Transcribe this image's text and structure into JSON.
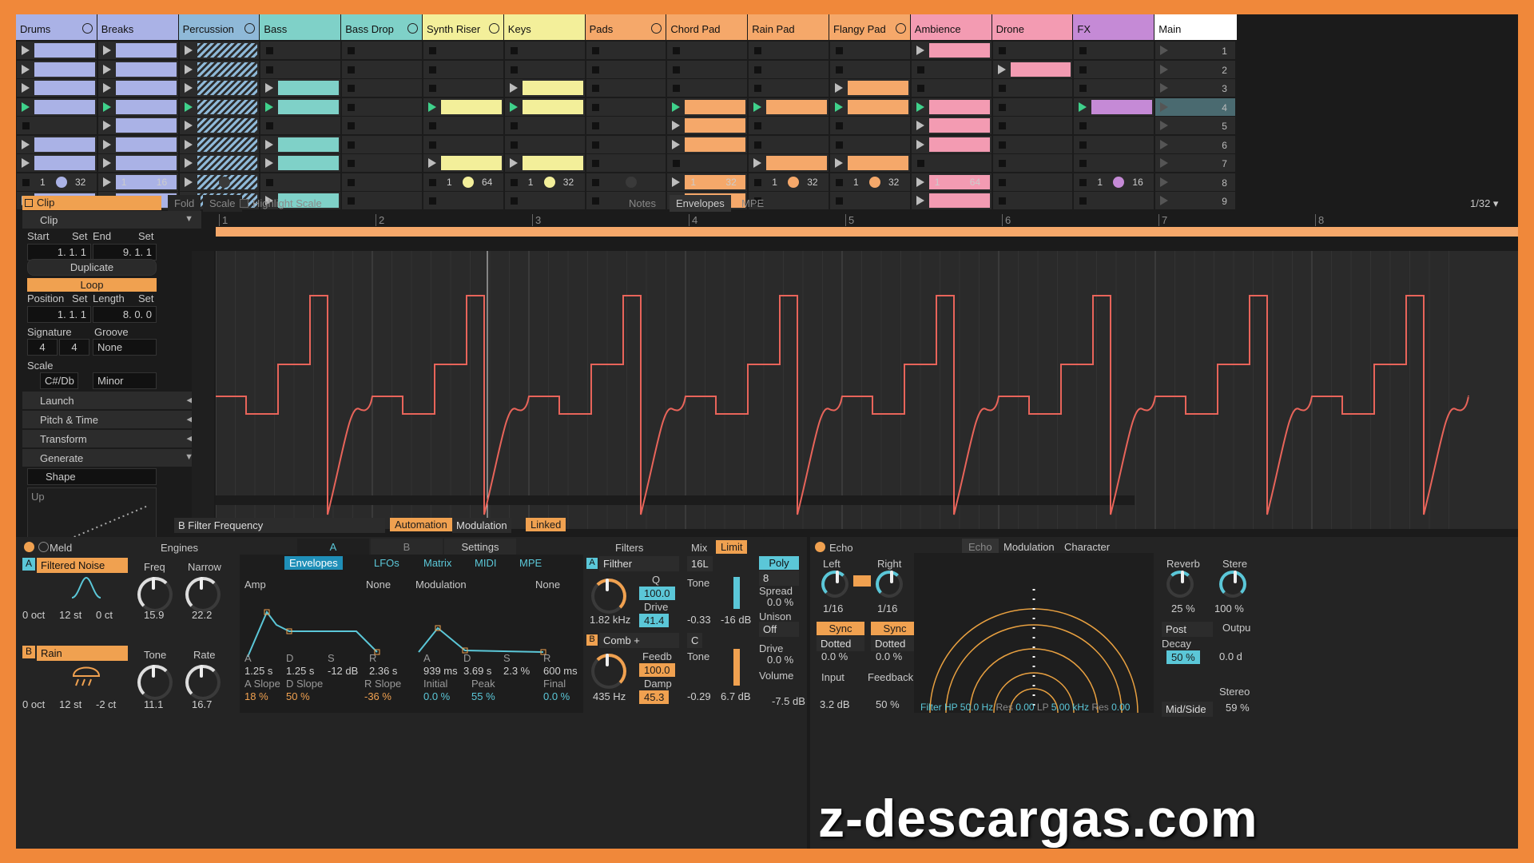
{
  "tracks": [
    {
      "name": "Drums",
      "color": "#aab2e6",
      "fold": true
    },
    {
      "name": "Breaks",
      "color": "#aab2e6",
      "fold": false
    },
    {
      "name": "Percussion",
      "color": "#8fb9d8",
      "fold": true
    },
    {
      "name": "Bass",
      "color": "#7fd1c8",
      "fold": false
    },
    {
      "name": "Bass Drop",
      "color": "#7fd1c8",
      "fold": true
    },
    {
      "name": "Synth Riser",
      "color": "#f3ef9a",
      "fold": true
    },
    {
      "name": "Keys",
      "color": "#f3ef9a",
      "fold": false
    },
    {
      "name": "Pads",
      "color": "#f5a86a",
      "fold": true
    },
    {
      "name": "Chord Pad",
      "color": "#f5a86a",
      "fold": false
    },
    {
      "name": "Rain Pad",
      "color": "#f5a86a",
      "fold": false
    },
    {
      "name": "Flangy Pad",
      "color": "#f5a86a",
      "fold": true
    },
    {
      "name": "Ambience",
      "color": "#f39bb2",
      "fold": false
    },
    {
      "name": "Drone",
      "color": "#f39bb2",
      "fold": false
    },
    {
      "name": "FX",
      "color": "#c58ad6",
      "fold": false
    },
    {
      "name": "Main",
      "color": "#ffffff",
      "fold": false
    }
  ],
  "clips": [
    [
      1,
      1,
      1,
      1,
      0,
      1,
      1,
      0,
      1
    ],
    [
      1,
      1,
      1,
      1,
      1,
      1,
      1,
      1,
      1
    ],
    [
      1,
      1,
      1,
      1,
      1,
      1,
      1,
      1,
      1
    ],
    [
      0,
      0,
      1,
      1,
      0,
      1,
      1,
      0,
      1
    ],
    [
      0,
      0,
      0,
      0,
      0,
      0,
      0,
      0,
      0
    ],
    [
      0,
      0,
      0,
      1,
      0,
      0,
      1,
      0,
      0
    ],
    [
      0,
      0,
      1,
      1,
      0,
      0,
      1,
      0,
      0
    ],
    [
      0,
      0,
      0,
      0,
      0,
      0,
      0,
      0,
      0
    ],
    [
      0,
      0,
      0,
      1,
      1,
      1,
      0,
      1,
      1
    ],
    [
      0,
      0,
      0,
      1,
      0,
      0,
      1,
      0,
      0
    ],
    [
      0,
      0,
      1,
      1,
      0,
      0,
      1,
      0,
      0
    ],
    [
      1,
      0,
      0,
      1,
      1,
      1,
      0,
      1,
      1
    ],
    [
      0,
      1,
      0,
      0,
      0,
      0,
      0,
      0,
      0
    ],
    [
      0,
      0,
      0,
      1,
      0,
      0,
      0,
      0,
      0
    ],
    [
      0,
      0,
      0,
      0,
      0,
      0,
      0,
      0,
      0
    ]
  ],
  "scenes": [
    "1",
    "2",
    "3",
    "4",
    "5",
    "6",
    "7",
    "8",
    "9"
  ],
  "track_status": [
    {
      "a": "1",
      "b": "32",
      "dot": "#aab2e6"
    },
    {
      "a": "1",
      "b": "16",
      "dot": "#aab2e6"
    },
    {
      "a": "",
      "b": "",
      "dot": "#3a3a3a"
    },
    {
      "a": "",
      "b": "",
      "dot": ""
    },
    {
      "a": "",
      "b": "",
      "dot": ""
    },
    {
      "a": "1",
      "b": "64",
      "dot": "#f3ef9a"
    },
    {
      "a": "1",
      "b": "32",
      "dot": "#f3ef9a"
    },
    {
      "a": "",
      "b": "",
      "dot": "#3a3a3a"
    },
    {
      "a": "1",
      "b": "32",
      "dot": "#f5a86a"
    },
    {
      "a": "1",
      "b": "32",
      "dot": "#f5a86a"
    },
    {
      "a": "1",
      "b": "32",
      "dot": "#f5a86a"
    },
    {
      "a": "1",
      "b": "64",
      "dot": "#f39bb2"
    },
    {
      "a": "",
      "b": "",
      "dot": ""
    },
    {
      "a": "1",
      "b": "16",
      "dot": "#c58ad6"
    },
    {
      "a": "",
      "b": "",
      "dot": ""
    }
  ],
  "clip_panel": {
    "title": "Clip",
    "tabs": [
      "Fold",
      "Scale"
    ],
    "highlight": "Highlight Scale",
    "view_tabs": [
      "Notes",
      "Envelopes",
      "MPE"
    ],
    "grid": "1/32 ▾",
    "clip_label": "Clip",
    "start": "Start",
    "end": "End",
    "set": "Set",
    "start_val": "1.  1.  1",
    "end_val": "9.  1.  1",
    "duplicate": "Duplicate",
    "loop": "Loop",
    "position": "Position",
    "length": "Length",
    "position_val": "1.  1.  1",
    "length_val": "8.  0.  0",
    "signature": "Signature",
    "groove": "Groove",
    "sig_num": "4",
    "sig_den": "4",
    "groove_val": "None",
    "scale": "Scale",
    "root": "C#/Db",
    "mode": "Minor",
    "sections": [
      "Launch",
      "Pitch & Time",
      "Transform",
      "Generate"
    ],
    "shape": "Shape",
    "shape_dir": "Up",
    "env_target": "B Filter Frequency",
    "automation": "Automation",
    "modulation": "Modulation",
    "linked": "Linked",
    "ruler": [
      "1",
      "2",
      "3",
      "4",
      "5",
      "6",
      "7",
      "8"
    ]
  },
  "meld": {
    "title": "Meld",
    "engines": "Engines",
    "tabs": [
      "A",
      "B",
      "Settings"
    ],
    "osc_a": "Filtered Noise",
    "osc_b": "Rain",
    "a": "A",
    "b": "B",
    "a_vals": [
      "0 oct",
      "12 st",
      "0 ct"
    ],
    "b_vals": [
      "0 oct",
      "12 st",
      "-2 ct"
    ],
    "freq": "Freq",
    "narrow": "Narrow",
    "freq_val": "15.9",
    "narrow_val": "22.2",
    "tone": "Tone",
    "rate": "Rate",
    "tone_val": "11.1",
    "rate_val": "16.7",
    "subtabs": [
      "Envelopes",
      "LFOs",
      "Matrix",
      "MIDI",
      "MPE"
    ],
    "amp": "Amp",
    "none": "None",
    "modulation": "Modulation",
    "amp_labels": [
      "A",
      "D",
      "S",
      "R"
    ],
    "amp_vals": [
      "1.25 s",
      "1.25 s",
      "-12 dB",
      "2.36 s"
    ],
    "amp_slope": [
      "A Slope",
      "D Slope",
      "R Slope"
    ],
    "amp_slope_vals": [
      "18 %",
      "50 %",
      "-36 %"
    ],
    "mod_labels": [
      "A",
      "D",
      "S",
      "R"
    ],
    "mod_vals": [
      "939 ms",
      "3.69 s",
      "2.3 %",
      "600 ms"
    ],
    "mod_extra": [
      "Initial",
      "Peak",
      "Final"
    ],
    "mod_extra_vals": [
      "0.0 %",
      "55 %",
      "0.0 %"
    ],
    "filters": "Filters",
    "mix": "Mix",
    "limit": "Limit",
    "filter_a": "Filther",
    "filter_b": "Comb +",
    "q": "Q",
    "q_val": "100.0",
    "drive": "Drive",
    "drive_val": "41.4",
    "freq_a": "1.82 kHz",
    "feedb": "Feedb",
    "feedb_val": "100.0",
    "damp": "Damp",
    "damp_val": "45.3",
    "freq_b": "435 Hz",
    "mix_a": "16L",
    "mix_c": "C",
    "mix_tone": "Tone",
    "mix_tone_a": "-0.33",
    "mix_tone_b": "-0.29",
    "mix_db_a": "-16 dB",
    "mix_db_b": "6.7 dB",
    "poly": "Poly",
    "voices": "8",
    "spread": "Spread",
    "spread_val": "0.0 %",
    "unison": "Unison",
    "unison_val": "Off",
    "vdrive": "Drive",
    "vdrive_val": "0.0 %",
    "volume": "Volume",
    "volume_val": "-7.5 dB"
  },
  "echo": {
    "title": "Echo",
    "tabs": [
      "Echo",
      "Modulation",
      "Character"
    ],
    "left": "Left",
    "right": "Right",
    "left_val": "1/16",
    "right_val": "1/16",
    "sync": "Sync",
    "dotted": "Dotted",
    "pct_a": "0.0 %",
    "pct_b": "0.0 %",
    "input": "Input",
    "feedback": "Feedback",
    "in_val": "3.2 dB",
    "fb_val": "50 %",
    "reverb": "Reverb",
    "reverb_val": "25 %",
    "stereo": "Stere",
    "stereo_val": "100 %",
    "post": "Post",
    "decay": "Decay",
    "decay_val": "50 %",
    "output": "Outpu",
    "output_val": "0.0 d",
    "filter": "Filter HP",
    "hp": "50.0 Hz",
    "res": "Res",
    "res1": "0.00",
    "lp": "LP",
    "lpv": "5.00 kHz",
    "res2": "0.00",
    "midside": "Mid/Side",
    "wet": "59 %",
    "stereo_tail": "Stereo"
  },
  "watermark": "z-descargas.com"
}
